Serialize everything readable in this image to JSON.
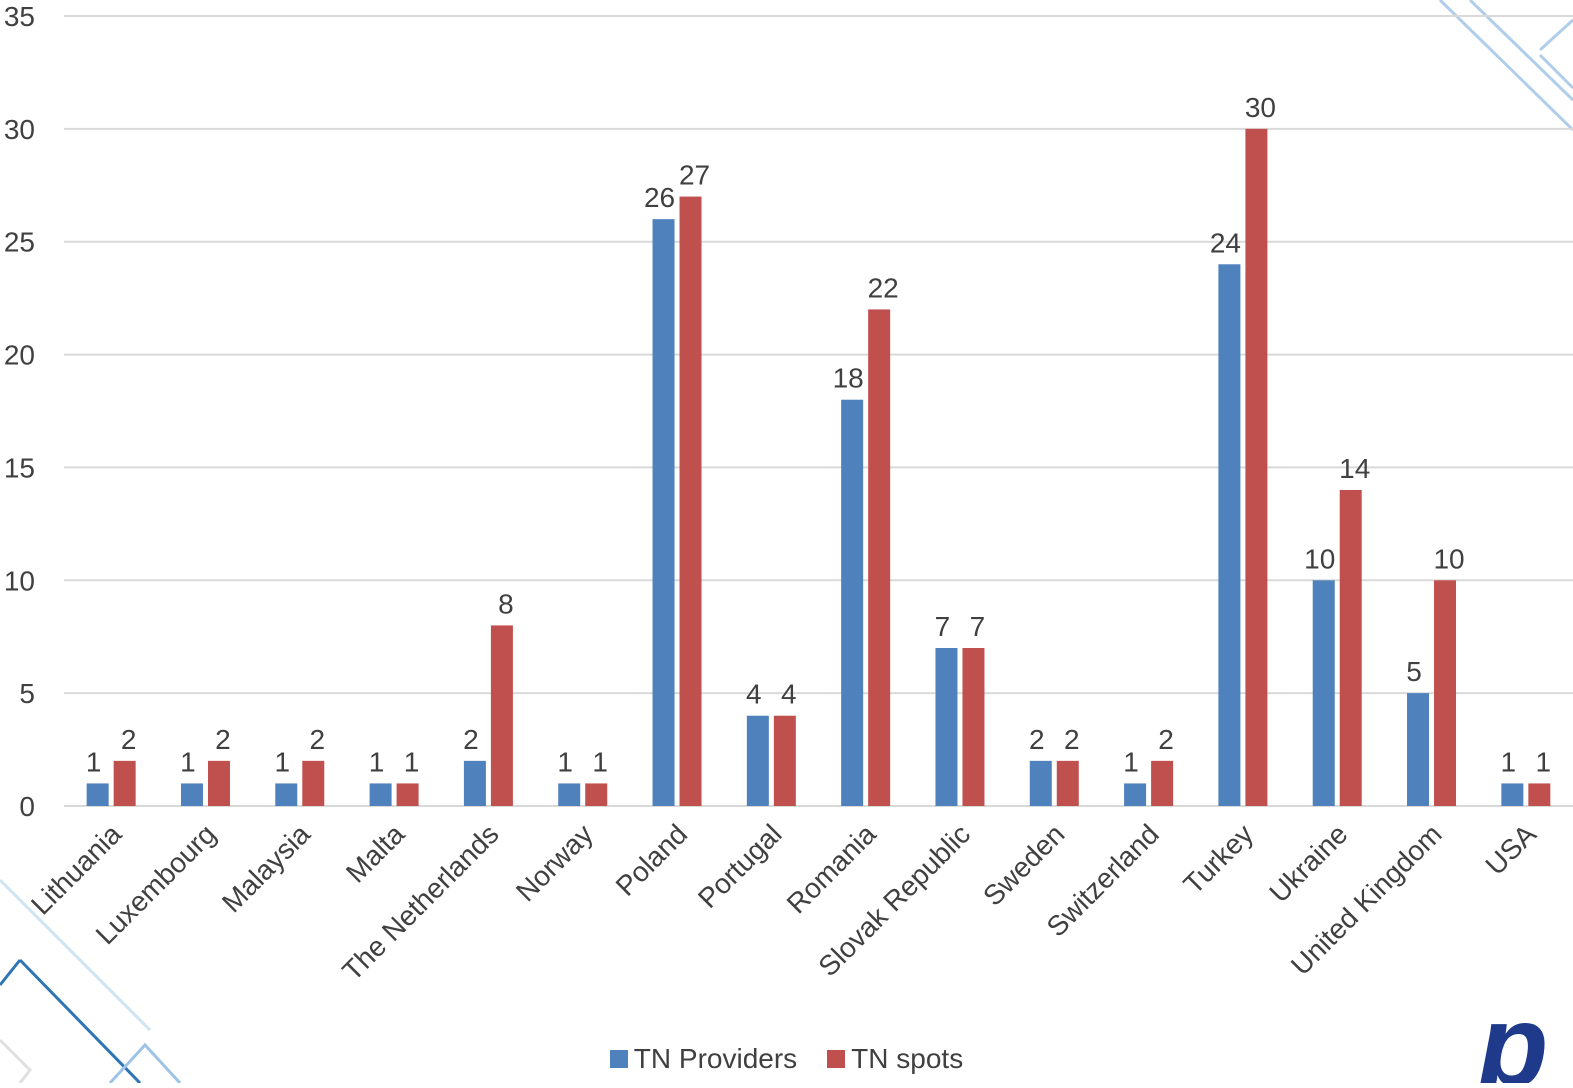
{
  "chart_data": {
    "type": "bar",
    "categories": [
      "Lithuania",
      "Luxembourg",
      "Malaysia",
      "Malta",
      "The Netherlands",
      "Norway",
      "Poland",
      "Portugal",
      "Romania",
      "Slovak Republic",
      "Sweden",
      "Switzerland",
      "Turkey",
      "Ukraine",
      "United Kingdom",
      "USA"
    ],
    "series": [
      {
        "name": "TN Providers",
        "color": "#4f81bd",
        "values": [
          1,
          1,
          1,
          1,
          2,
          1,
          26,
          4,
          18,
          7,
          2,
          1,
          24,
          10,
          5,
          1
        ]
      },
      {
        "name": "TN spots",
        "color": "#c0504d",
        "values": [
          2,
          2,
          2,
          1,
          8,
          1,
          27,
          4,
          22,
          7,
          2,
          2,
          30,
          14,
          10,
          1
        ]
      }
    ],
    "ylim": [
      0,
      35
    ],
    "yticks": [
      "0",
      "5",
      "10",
      "15",
      "20",
      "25",
      "30",
      "35"
    ],
    "grid": true,
    "data_labels": true,
    "legend_position": "bottom"
  },
  "logo": {
    "text": "p",
    "color": "#1f3a8a"
  },
  "colors": {
    "grid": "#d9d9d9",
    "text": "#404040",
    "decor": "#9dc3e6"
  }
}
